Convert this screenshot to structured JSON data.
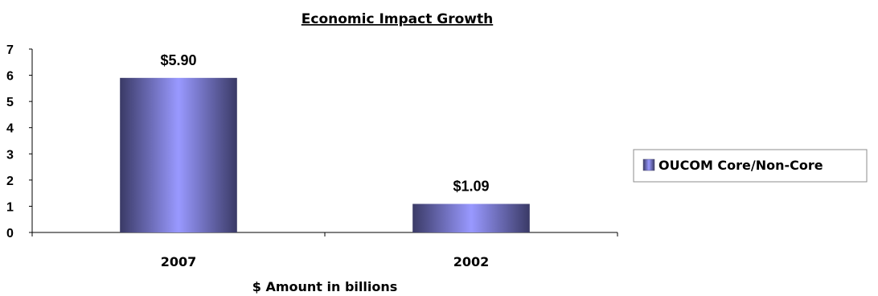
{
  "chart_data": {
    "type": "bar",
    "title": "Economic Impact Growth",
    "xlabel": "$ Amount in billions",
    "ylabel": "",
    "categories": [
      "2007",
      "2002"
    ],
    "series": [
      {
        "name": "OUCOM Core/Non-Core",
        "values": [
          5.9,
          1.09
        ]
      }
    ],
    "data_labels": [
      "$5.90",
      "$1.09"
    ],
    "y_ticks": [
      "0",
      "1",
      "2",
      "3",
      "4",
      "5",
      "6",
      "7"
    ],
    "ylim": [
      0,
      7
    ],
    "grid": false,
    "legend_position": "right",
    "colors": {
      "bar_center": "#9999ff",
      "bar_edge": "#3a3a66",
      "axis": "#000000"
    }
  }
}
